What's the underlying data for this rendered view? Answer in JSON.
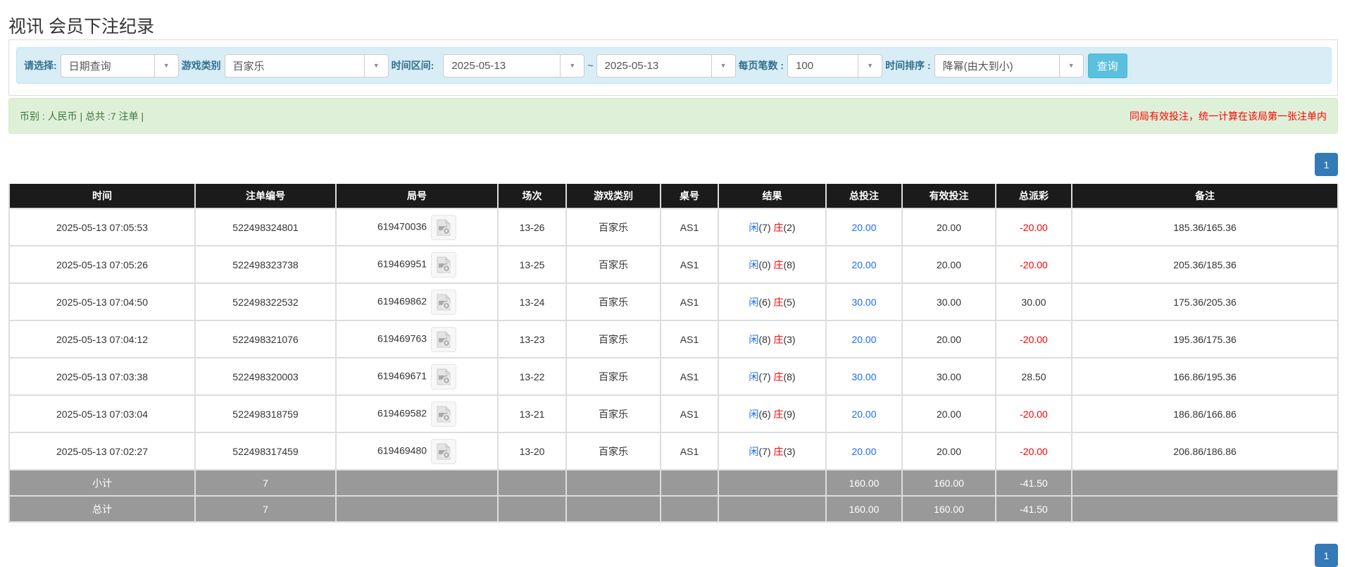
{
  "page_title": "视讯 会员下注纪录",
  "filter": {
    "select_label": "请选择:",
    "select_value": "日期查询",
    "game_type_label": "游戏类别",
    "game_type_value": "百家乐",
    "time_range_label": "时间区间:",
    "date_from": "2025-05-13",
    "tilde": "~",
    "date_to": "2025-05-13",
    "page_size_label": "每页笔数 :",
    "page_size_value": "100",
    "sort_label": "时间排序 :",
    "sort_value": "降幂(由大到小)",
    "query_button": "查询"
  },
  "summary": {
    "left": "币别 : 人民币 | 总共 :7 注单 |",
    "right": "同局有效投注，统一计算在该局第一张注单内"
  },
  "pagination": {
    "current": "1"
  },
  "colors": {
    "header_bg": "#1b1b1b",
    "sum_bg": "#999999",
    "blue": "#1a6cf0",
    "red": "#ff0000",
    "primary": "#337ab7",
    "info": "#5bc0de"
  },
  "table": {
    "headers": [
      "时间",
      "注单编号",
      "局号",
      "场次",
      "游戏类别",
      "桌号",
      "结果",
      "总投注",
      "有效投注",
      "总派彩",
      "备注"
    ],
    "result_player_label": "闲",
    "result_banker_label": "庄",
    "row_icon": "video-file-icon",
    "rows": [
      {
        "time": "2025-05-13 07:05:53",
        "bet_id": "522498324801",
        "round": "619470036",
        "session": "13-26",
        "game": "百家乐",
        "table": "AS1",
        "player": "(7)",
        "banker": "(2)",
        "total_bet": "20.00",
        "valid_bet": "20.00",
        "payout": "-20.00",
        "payout_negative": true,
        "note": "185.36/165.36"
      },
      {
        "time": "2025-05-13 07:05:26",
        "bet_id": "522498323738",
        "round": "619469951",
        "session": "13-25",
        "game": "百家乐",
        "table": "AS1",
        "player": "(0)",
        "banker": "(8)",
        "total_bet": "20.00",
        "valid_bet": "20.00",
        "payout": "-20.00",
        "payout_negative": true,
        "note": "205.36/185.36"
      },
      {
        "time": "2025-05-13 07:04:50",
        "bet_id": "522498322532",
        "round": "619469862",
        "session": "13-24",
        "game": "百家乐",
        "table": "AS1",
        "player": "(6)",
        "banker": "(5)",
        "total_bet": "30.00",
        "valid_bet": "30.00",
        "payout": "30.00",
        "payout_negative": false,
        "note": "175.36/205.36"
      },
      {
        "time": "2025-05-13 07:04:12",
        "bet_id": "522498321076",
        "round": "619469763",
        "session": "13-23",
        "game": "百家乐",
        "table": "AS1",
        "player": "(8)",
        "banker": "(3)",
        "total_bet": "20.00",
        "valid_bet": "20.00",
        "payout": "-20.00",
        "payout_negative": true,
        "note": "195.36/175.36"
      },
      {
        "time": "2025-05-13 07:03:38",
        "bet_id": "522498320003",
        "round": "619469671",
        "session": "13-22",
        "game": "百家乐",
        "table": "AS1",
        "player": "(7)",
        "banker": "(8)",
        "total_bet": "30.00",
        "valid_bet": "30.00",
        "payout": "28.50",
        "payout_negative": false,
        "note": "166.86/195.36"
      },
      {
        "time": "2025-05-13 07:03:04",
        "bet_id": "522498318759",
        "round": "619469582",
        "session": "13-21",
        "game": "百家乐",
        "table": "AS1",
        "player": "(6)",
        "banker": "(9)",
        "total_bet": "20.00",
        "valid_bet": "20.00",
        "payout": "-20.00",
        "payout_negative": true,
        "note": "186.86/166.86"
      },
      {
        "time": "2025-05-13 07:02:27",
        "bet_id": "522498317459",
        "round": "619469480",
        "session": "13-20",
        "game": "百家乐",
        "table": "AS1",
        "player": "(7)",
        "banker": "(3)",
        "total_bet": "20.00",
        "valid_bet": "20.00",
        "payout": "-20.00",
        "payout_negative": true,
        "note": "206.86/186.86"
      }
    ],
    "subtotal": {
      "label": "小计",
      "count": "7",
      "total_bet": "160.00",
      "valid_bet": "160.00",
      "payout": "-41.50"
    },
    "grand_total": {
      "label": "总计",
      "count": "7",
      "total_bet": "160.00",
      "valid_bet": "160.00",
      "payout": "-41.50"
    }
  }
}
